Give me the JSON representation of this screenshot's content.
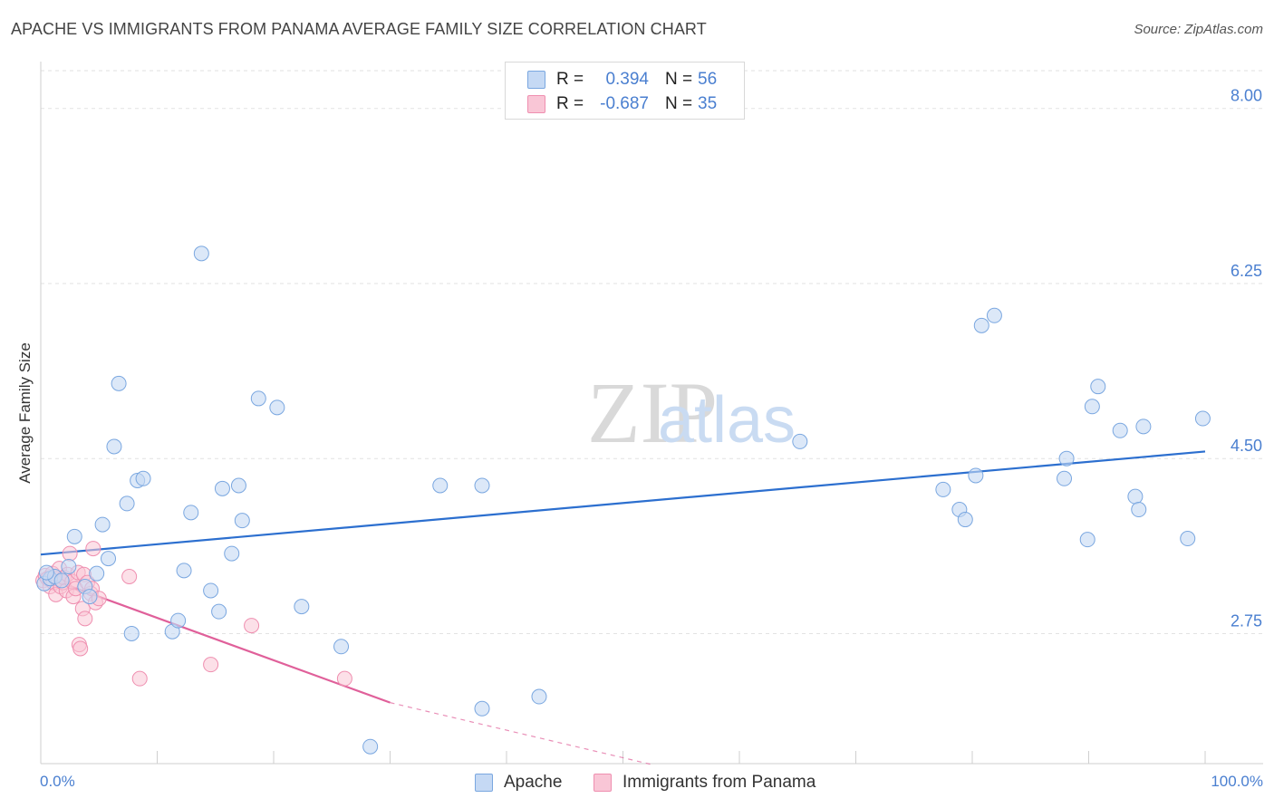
{
  "header": {
    "title": "APACHE VS IMMIGRANTS FROM PANAMA AVERAGE FAMILY SIZE CORRELATION CHART",
    "source": "Source: ZipAtlas.com"
  },
  "watermark": {
    "zip": "ZIP",
    "atlas": "atlas"
  },
  "legend": {
    "rows": [
      {
        "r_label": "R =",
        "r_value": "0.394",
        "n_label": "N =",
        "n_value": "56"
      },
      {
        "r_label": "R =",
        "r_value": "-0.687",
        "n_label": "N =",
        "n_value": "35"
      }
    ]
  },
  "colors": {
    "apache_fill": "#c5d9f4",
    "apache_stroke": "#7aa7e0",
    "apache_line": "#2c6fcf",
    "panama_fill": "#f9c6d6",
    "panama_stroke": "#ef8fb0",
    "panama_line": "#e0609a",
    "tick_label": "#4a7fd0",
    "grid": "#e2e2e2"
  },
  "chart_data": {
    "type": "scatter",
    "title": "APACHE VS IMMIGRANTS FROM PANAMA AVERAGE FAMILY SIZE CORRELATION CHART",
    "xlabel": "",
    "ylabel": "Average Family Size",
    "xlim": [
      0,
      100
    ],
    "ylim": [
      1.45,
      8.45
    ],
    "x_tick_labels": [
      "0.0%",
      "100.0%"
    ],
    "y_ticks": [
      2.75,
      4.5,
      6.25,
      8.0
    ],
    "y_tick_labels": [
      "2.75",
      "4.50",
      "6.25",
      "8.00"
    ],
    "grid": true,
    "series": [
      {
        "name": "Apache",
        "points": [
          [
            0.3,
            3.25
          ],
          [
            0.8,
            3.3
          ],
          [
            1.2,
            3.32
          ],
          [
            1.8,
            3.28
          ],
          [
            2.4,
            3.42
          ],
          [
            2.9,
            3.72
          ],
          [
            3.8,
            3.22
          ],
          [
            4.2,
            3.12
          ],
          [
            4.8,
            3.35
          ],
          [
            5.3,
            3.84
          ],
          [
            5.8,
            3.5
          ],
          [
            6.3,
            4.62
          ],
          [
            6.7,
            5.25
          ],
          [
            7.4,
            4.05
          ],
          [
            7.8,
            2.75
          ],
          [
            8.3,
            4.28
          ],
          [
            8.8,
            4.3
          ],
          [
            11.3,
            2.77
          ],
          [
            11.8,
            2.88
          ],
          [
            12.3,
            3.38
          ],
          [
            12.9,
            3.96
          ],
          [
            13.8,
            6.55
          ],
          [
            14.6,
            3.18
          ],
          [
            15.3,
            2.97
          ],
          [
            15.6,
            4.2
          ],
          [
            16.4,
            3.55
          ],
          [
            17.0,
            4.23
          ],
          [
            17.3,
            3.88
          ],
          [
            18.7,
            5.1
          ],
          [
            20.3,
            5.01
          ],
          [
            22.4,
            3.02
          ],
          [
            25.8,
            2.62
          ],
          [
            28.3,
            1.62
          ],
          [
            34.3,
            4.23
          ],
          [
            37.9,
            4.23
          ],
          [
            37.9,
            2.0
          ],
          [
            42.8,
            2.12
          ],
          [
            65.2,
            4.67
          ],
          [
            77.5,
            4.19
          ],
          [
            78.9,
            3.99
          ],
          [
            79.4,
            3.89
          ],
          [
            80.3,
            4.33
          ],
          [
            80.8,
            5.83
          ],
          [
            81.9,
            5.93
          ],
          [
            87.9,
            4.3
          ],
          [
            88.1,
            4.5
          ],
          [
            89.9,
            3.69
          ],
          [
            90.3,
            5.02
          ],
          [
            90.8,
            5.22
          ],
          [
            92.7,
            4.78
          ],
          [
            94.0,
            4.12
          ],
          [
            94.3,
            3.99
          ],
          [
            94.7,
            4.82
          ],
          [
            98.5,
            3.7
          ],
          [
            99.8,
            4.9
          ],
          [
            0.5,
            3.36
          ]
        ]
      },
      {
        "name": "Immigrants from Panama",
        "points": [
          [
            0.2,
            3.28
          ],
          [
            0.4,
            3.33
          ],
          [
            0.6,
            3.3
          ],
          [
            0.8,
            3.22
          ],
          [
            1.0,
            3.35
          ],
          [
            1.1,
            3.26
          ],
          [
            1.3,
            3.14
          ],
          [
            1.4,
            3.3
          ],
          [
            1.6,
            3.4
          ],
          [
            1.7,
            3.22
          ],
          [
            1.9,
            3.26
          ],
          [
            2.0,
            3.31
          ],
          [
            2.2,
            3.18
          ],
          [
            2.3,
            3.34
          ],
          [
            2.5,
            3.55
          ],
          [
            2.7,
            3.27
          ],
          [
            2.8,
            3.12
          ],
          [
            3.0,
            3.2
          ],
          [
            3.2,
            3.36
          ],
          [
            3.3,
            2.64
          ],
          [
            3.4,
            2.6
          ],
          [
            3.6,
            3.0
          ],
          [
            3.7,
            3.34
          ],
          [
            3.8,
            2.9
          ],
          [
            4.0,
            3.26
          ],
          [
            4.3,
            3.15
          ],
          [
            4.4,
            3.2
          ],
          [
            4.5,
            3.6
          ],
          [
            4.7,
            3.06
          ],
          [
            5.0,
            3.1
          ],
          [
            7.6,
            3.32
          ],
          [
            8.5,
            2.3
          ],
          [
            14.6,
            2.44
          ],
          [
            18.1,
            2.83
          ],
          [
            26.1,
            2.3
          ]
        ]
      }
    ],
    "trendlines": [
      {
        "series": "Apache",
        "x": [
          0,
          100
        ],
        "y": [
          3.54,
          4.57
        ]
      },
      {
        "series": "Immigrants from Panama",
        "x": [
          0,
          30
        ],
        "y": [
          3.33,
          2.06
        ],
        "dashed_to": [
          52.5,
          1.44
        ]
      }
    ]
  },
  "bottom_legend": {
    "items": [
      "Apache",
      "Immigrants from Panama"
    ]
  }
}
